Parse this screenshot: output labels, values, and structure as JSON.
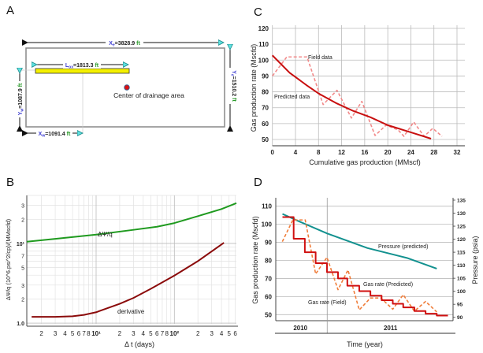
{
  "panels": {
    "a": "A",
    "b": "B",
    "c": "C",
    "d": "D"
  },
  "diagram_a": {
    "xe": {
      "sym": "X",
      "sub": "e",
      "value": "=3828.9",
      "unit": "ft"
    },
    "lox": {
      "sym": "L",
      "sub": "ox",
      "value": "=1813.3",
      "unit": "ft"
    },
    "ye": {
      "sym": "Y",
      "sub": "e",
      "value": "=1510.2",
      "unit": "ft"
    },
    "yw": {
      "sym": "Y",
      "sub": "w",
      "value": "=1087.9",
      "unit": "ft"
    },
    "xw": {
      "sym": "X",
      "sub": "w",
      "value": "=1091.4",
      "unit": "ft"
    },
    "center_label": "Center of drainage area",
    "colors": {
      "symbol": "#3b3bd0",
      "unit": "#2a9a2a",
      "well": "#f4f000",
      "center": "#e01010"
    }
  },
  "chart_data": [
    {
      "id": "B",
      "type": "line",
      "scale": "log-log",
      "xlabel": "Δ t (days)",
      "ylabel": "ΔΨ/q (10^6.psi^2/cp)/(MMscfd)",
      "xlim": [
        1.3,
        620
      ],
      "ylim": [
        0.98,
        40
      ],
      "x_ticks": [
        {
          "v": 2,
          "t": "2"
        },
        {
          "v": 3,
          "t": "3"
        },
        {
          "v": 4,
          "t": "4"
        },
        {
          "v": 5,
          "t": "5"
        },
        {
          "v": 6,
          "t": "6"
        },
        {
          "v": 7,
          "t": "7"
        },
        {
          "v": 8,
          "t": "8"
        },
        {
          "v": 10,
          "t": "10¹"
        },
        {
          "v": 20,
          "t": "2"
        },
        {
          "v": 30,
          "t": "3"
        },
        {
          "v": 40,
          "t": "4"
        },
        {
          "v": 50,
          "t": "5"
        },
        {
          "v": 60,
          "t": "6"
        },
        {
          "v": 70,
          "t": "7"
        },
        {
          "v": 80,
          "t": "8"
        },
        {
          "v": 100,
          "t": "10²"
        },
        {
          "v": 200,
          "t": "2"
        },
        {
          "v": 300,
          "t": "3"
        },
        {
          "v": 400,
          "t": "4"
        },
        {
          "v": 500,
          "t": "5"
        },
        {
          "v": 600,
          "t": "6"
        }
      ],
      "y_ticks": [
        {
          "v": 1,
          "t": "1.0"
        },
        {
          "v": 2,
          "t": "2"
        },
        {
          "v": 3,
          "t": "3"
        },
        {
          "v": 5,
          "t": "5"
        },
        {
          "v": 7,
          "t": "7"
        },
        {
          "v": 10,
          "t": "10¹"
        },
        {
          "v": 20,
          "t": "2"
        },
        {
          "v": 30,
          "t": "3"
        }
      ],
      "series": [
        {
          "name": "ΔΨ/q",
          "color": "#1f9a1f",
          "x": [
            1.3,
            3,
            10,
            30,
            60,
            100,
            200,
            400,
            620
          ],
          "y": [
            10.5,
            11.4,
            12.9,
            14.8,
            16.2,
            18,
            22,
            27,
            32
          ]
        },
        {
          "name": "derivative",
          "color": "#8b0b0b",
          "x": [
            1.5,
            3,
            5,
            7,
            10,
            20,
            30,
            50,
            100,
            200,
            430
          ],
          "y": [
            1.2,
            1.2,
            1.22,
            1.27,
            1.37,
            1.75,
            2.07,
            2.7,
            3.95,
            6,
            10.2
          ]
        }
      ]
    },
    {
      "id": "C",
      "type": "line",
      "xlabel": "Cumulative gas production (MMscf)",
      "ylabel": "Gas production rate (Mscfd)",
      "xlim": [
        0,
        32
      ],
      "ylim": [
        50,
        120
      ],
      "x_ticks": [
        0,
        4,
        8,
        12,
        16,
        20,
        24,
        28,
        32
      ],
      "y_ticks": [
        50,
        60,
        70,
        80,
        90,
        100,
        110,
        120
      ],
      "series": [
        {
          "name": "Field data",
          "color": "#f28a8a",
          "dashed": true,
          "x": [
            0,
            2.5,
            6,
            8.8,
            11.2,
            13.7,
            15.5,
            17.8,
            19.7,
            21.8,
            22.8,
            24.5,
            26.3,
            27.8,
            29.4
          ],
          "y": [
            90,
            102,
            102,
            72,
            81,
            63.5,
            74,
            52.5,
            59,
            56,
            52,
            61,
            52,
            57,
            52
          ]
        },
        {
          "name": "Predicted data",
          "color": "#c80f0f",
          "dashed": false,
          "x": [
            0,
            3,
            6,
            8,
            11,
            14,
            17,
            20,
            24,
            27.5
          ],
          "y": [
            103,
            92,
            84,
            79,
            73,
            68,
            64,
            59,
            54.5,
            50.5
          ]
        }
      ]
    },
    {
      "id": "D",
      "type": "line",
      "xlabel": "Time (year)",
      "ylabel": "Gas production rate (Mscfd)",
      "y2label": "Pressure (psia)",
      "x_unit": "months from mid-2010",
      "xlim": [
        0,
        24
      ],
      "ylim": [
        47,
        114
      ],
      "y2lim": [
        89,
        136
      ],
      "year_boundary": 6.9,
      "x_categories": [
        {
          "label": "2010",
          "center": 3.3
        },
        {
          "label": "2011",
          "center": 15.4
        }
      ],
      "y_ticks": [
        50,
        60,
        70,
        80,
        90,
        100,
        110
      ],
      "y2_ticks": [
        90,
        95,
        100,
        105,
        110,
        115,
        120,
        125,
        130,
        135
      ],
      "series": [
        {
          "name": "Pressure (predicted)",
          "axis": "right",
          "color": "#12918f",
          "x": [
            0.9,
            3,
            6.9,
            12.3,
            17.6,
            21.6
          ],
          "y": [
            129.7,
            127,
            122.2,
            116.6,
            112.8,
            108.7
          ]
        },
        {
          "name": "Gas rate (Predicted)",
          "axis": "left",
          "color": "#d01010",
          "step": true,
          "x": [
            0.9,
            2.4,
            3.9,
            5.35,
            6.87,
            8.35,
            9.6,
            11.2,
            12.7,
            14.2,
            15.7,
            17.1,
            18.6,
            20.1,
            21.6,
            23.1
          ],
          "y": [
            104,
            92,
            84.5,
            78.5,
            73.5,
            70,
            66,
            63,
            60.5,
            58,
            56,
            54,
            52,
            50.5,
            49.5,
            49.5
          ]
        },
        {
          "name": "Gas rate (Field)",
          "axis": "left",
          "color": "#f07d3a",
          "dashed": true,
          "x": [
            0.88,
            2.29,
            3.95,
            5.35,
            6.87,
            8.35,
            9.69,
            11.2,
            12.7,
            14.1,
            15.7,
            17.1,
            18.6,
            20.1,
            21.6
          ],
          "y": [
            90.4,
            102.4,
            102.4,
            72.5,
            81.7,
            63.8,
            74.7,
            52.6,
            59.2,
            59.2,
            53,
            61,
            51.9,
            57.3,
            51.5
          ]
        }
      ]
    }
  ]
}
